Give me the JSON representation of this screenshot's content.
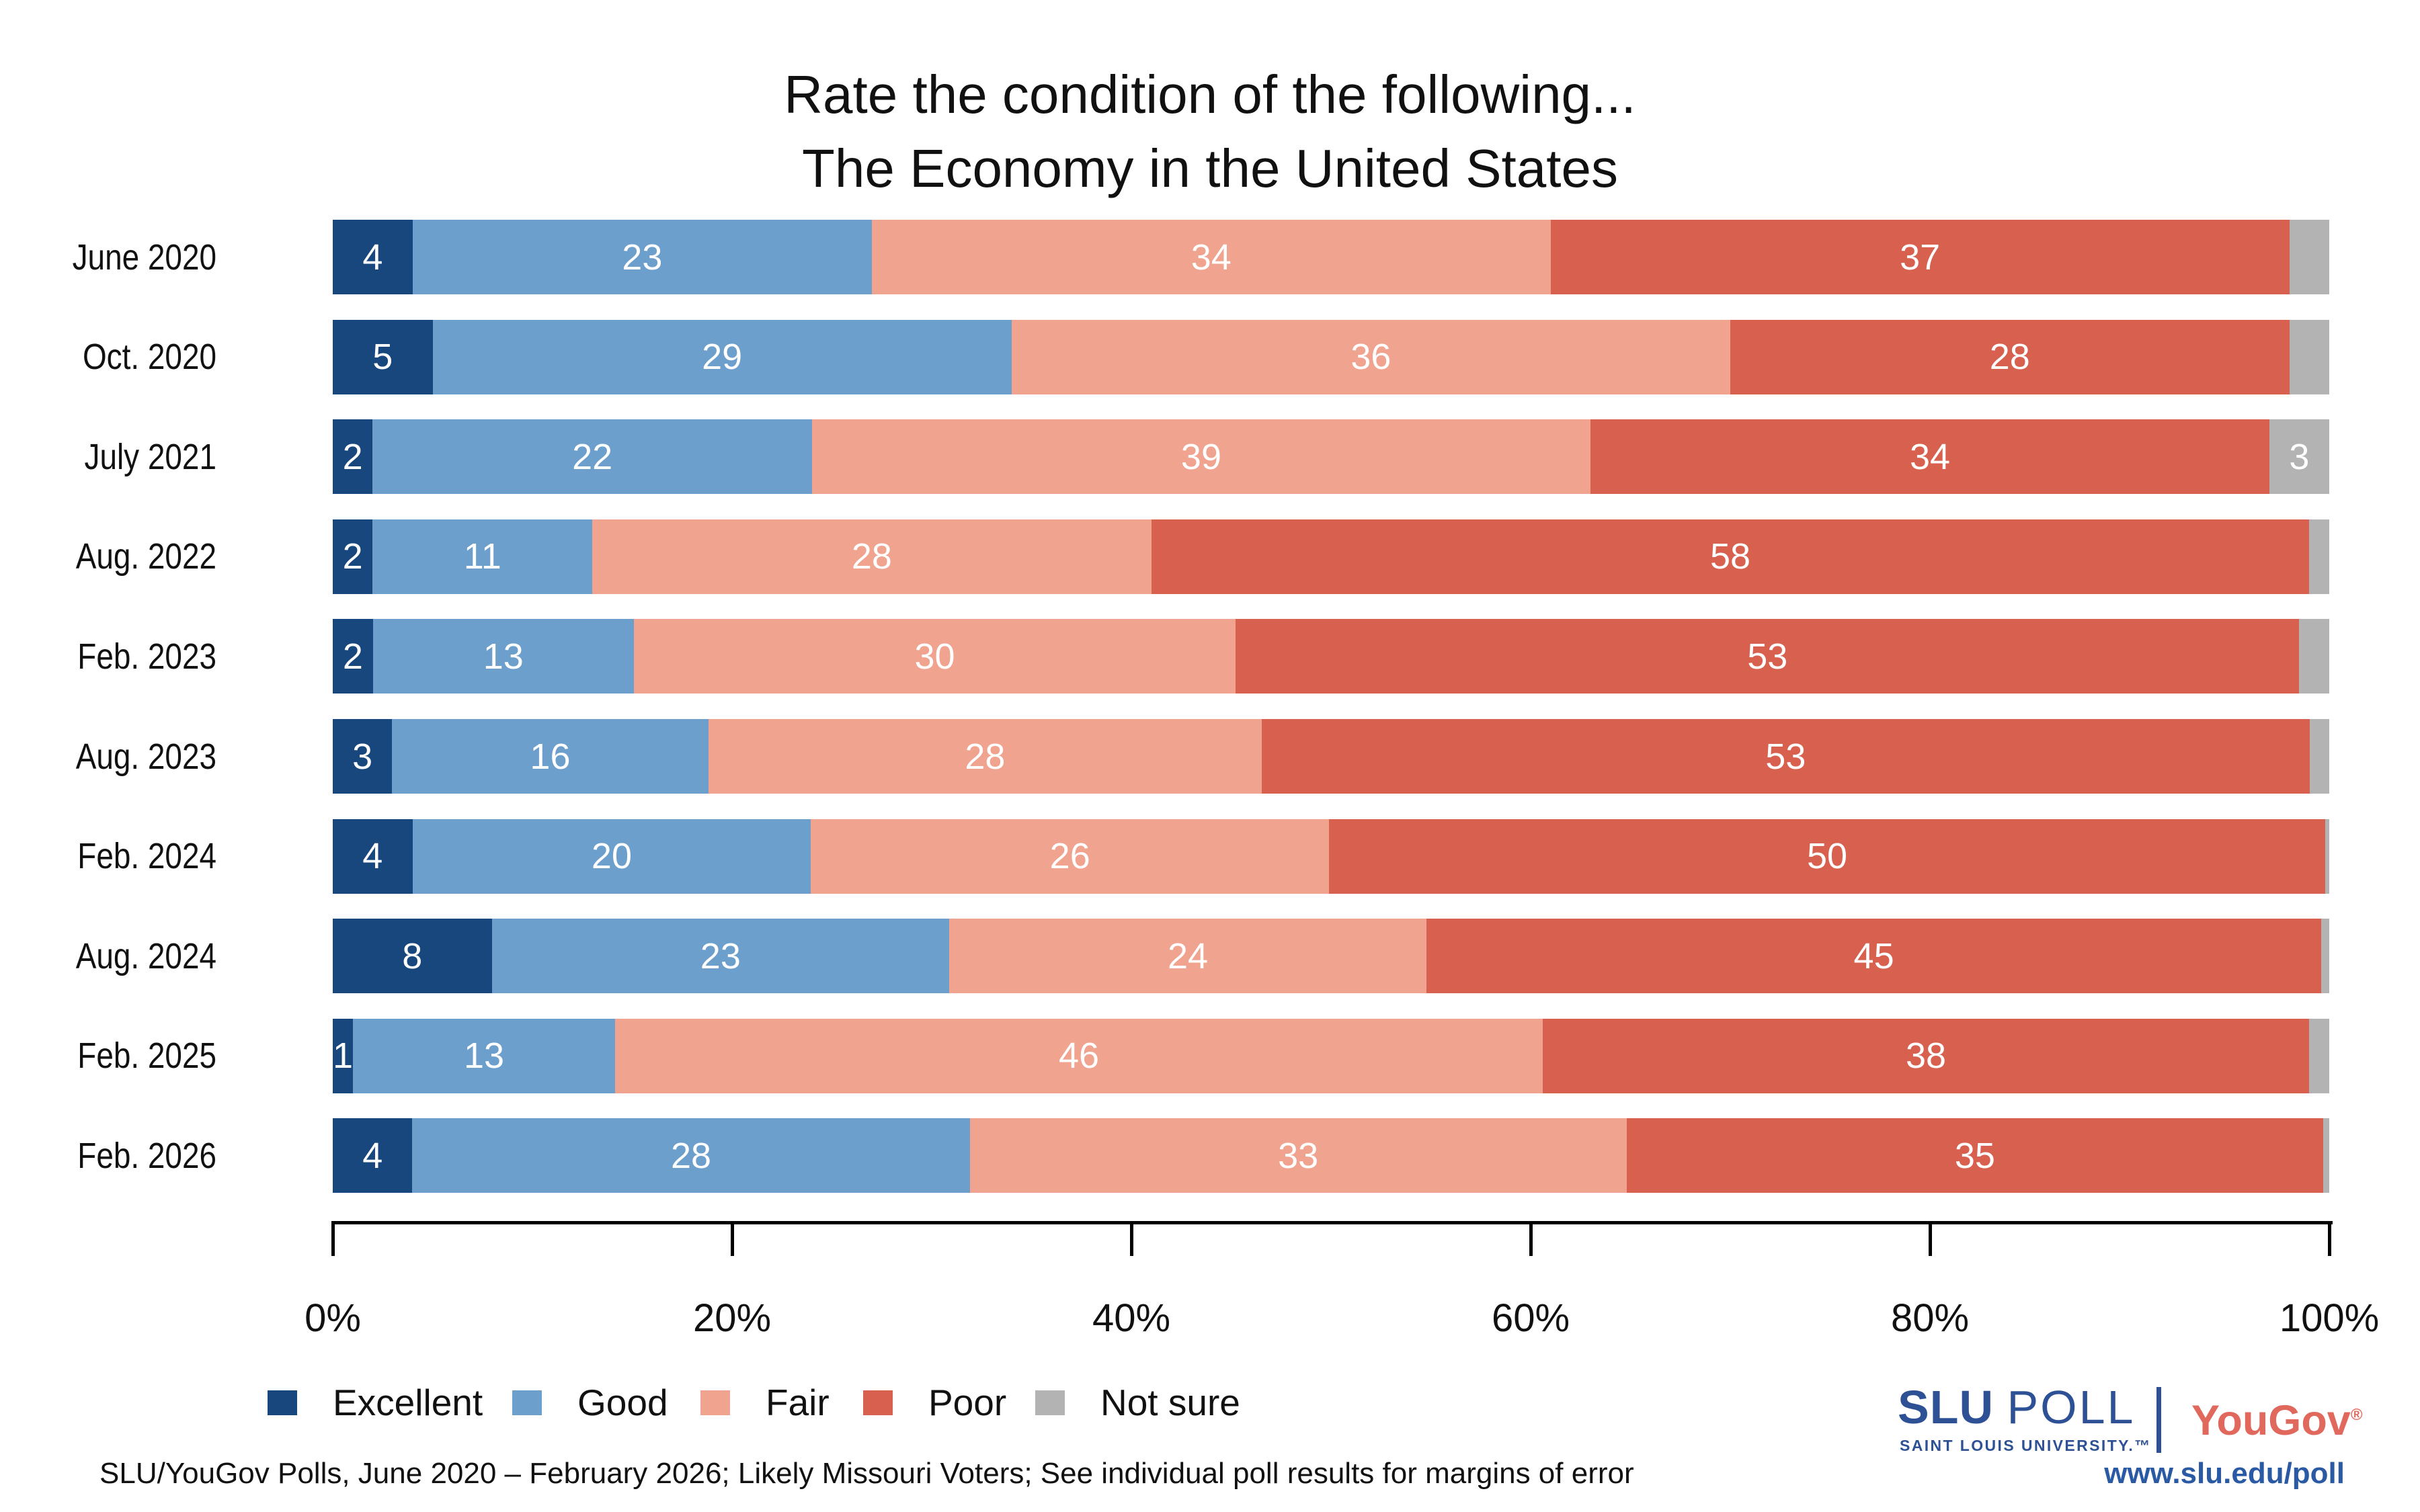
{
  "title": {
    "line1": "Rate the condition of the following...",
    "line2": "The Economy in the United States"
  },
  "chart_data": {
    "type": "bar",
    "stacked": true,
    "orientation": "horizontal",
    "title": "Rate the condition of the following... The Economy in the United States",
    "xlim": [
      0,
      100
    ],
    "x_ticks": [
      "0%",
      "20%",
      "40%",
      "60%",
      "80%",
      "100%"
    ],
    "series": [
      {
        "name": "Excellent",
        "color": "#17477d"
      },
      {
        "name": "Good",
        "color": "#6d9fcd"
      },
      {
        "name": "Fair",
        "color": "#f0a38f"
      },
      {
        "name": "Poor",
        "color": "#d8604e"
      },
      {
        "name": "Not sure",
        "color": "#b3b3b3"
      }
    ],
    "rows": [
      {
        "label": "June 2020",
        "values": [
          4,
          23,
          34,
          37
        ],
        "not_sure": 2,
        "not_sure_label": ""
      },
      {
        "label": "Oct. 2020",
        "values": [
          5,
          29,
          36,
          28
        ],
        "not_sure": 2,
        "not_sure_label": ""
      },
      {
        "label": "July 2021",
        "values": [
          2,
          22,
          39,
          34
        ],
        "not_sure": 3,
        "not_sure_label": "3"
      },
      {
        "label": "Aug. 2022",
        "values": [
          2,
          11,
          28,
          58
        ],
        "not_sure": 1,
        "not_sure_label": ""
      },
      {
        "label": "Feb. 2023",
        "values": [
          2,
          13,
          30,
          53
        ],
        "not_sure": 1.5,
        "not_sure_label": ""
      },
      {
        "label": "Aug. 2023",
        "values": [
          3,
          16,
          28,
          53
        ],
        "not_sure": 1,
        "not_sure_label": ""
      },
      {
        "label": "Feb. 2024",
        "values": [
          4,
          20,
          26,
          50
        ],
        "not_sure": 0.2,
        "not_sure_label": ""
      },
      {
        "label": "Aug. 2024",
        "values": [
          8,
          23,
          24,
          45
        ],
        "not_sure": 0.4,
        "not_sure_label": ""
      },
      {
        "label": "Feb. 2025",
        "values": [
          1,
          13,
          46,
          38
        ],
        "not_sure": 1,
        "not_sure_label": ""
      },
      {
        "label": "Feb. 2026",
        "values": [
          4,
          28,
          33,
          35
        ],
        "not_sure": 0.3,
        "not_sure_label": ""
      }
    ]
  },
  "footer": {
    "source": "SLU/YouGov Polls, June 2020 – February 2026; Likely Missouri Voters; See individual poll results for margins of error"
  },
  "branding": {
    "slu": "SLU",
    "poll": "POLL",
    "university": "SAINT LOUIS UNIVERSITY.™",
    "yougov": "YouGov",
    "reg": "®",
    "url": "www.slu.edu/poll",
    "slu_blue": "#2d5194",
    "yougov_red": "#e0685c",
    "url_blue": "#2b5aa5"
  }
}
